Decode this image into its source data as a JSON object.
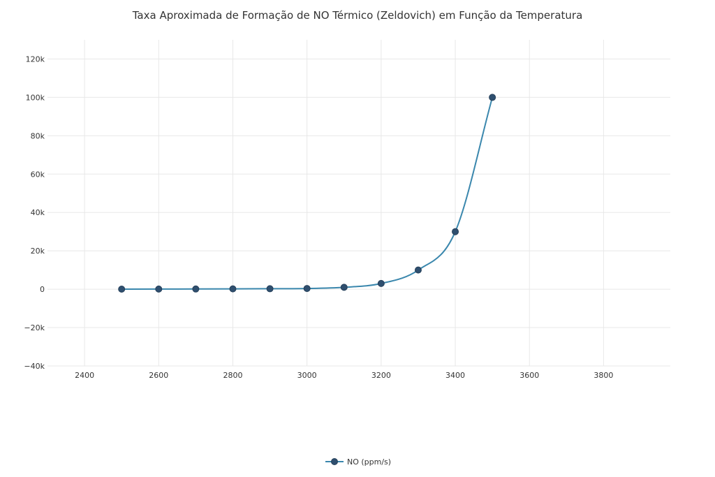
{
  "chart_data": {
    "type": "line",
    "title": "Taxa Aproximada de Formação de NO Térmico (Zeldovich) em Função da Temperatura",
    "xlabel": "",
    "ylabel": "",
    "x": [
      2500,
      2600,
      2700,
      2800,
      2900,
      3000,
      3100,
      3200,
      3300,
      3400,
      3500
    ],
    "series": [
      {
        "name": "NO (ppm/s)",
        "values": [
          50,
          80,
          120,
          180,
          260,
          380,
          1000,
          3000,
          10000,
          30000,
          100000
        ],
        "color": "#3a87ad",
        "marker_color": "#2f4f6f"
      }
    ],
    "xlim": [
      2300,
      3980
    ],
    "ylim": [
      -40000,
      130000
    ],
    "x_ticks": [
      2400,
      2600,
      2800,
      3000,
      3200,
      3400,
      3600,
      3800
    ],
    "y_ticks": [
      -40000,
      -20000,
      0,
      20000,
      40000,
      60000,
      80000,
      100000,
      120000
    ],
    "y_tick_labels": [
      "−40k",
      "−20k",
      "0",
      "20k",
      "40k",
      "60k",
      "80k",
      "100k",
      "120k"
    ],
    "grid": true,
    "legend_position": "bottom-center"
  }
}
